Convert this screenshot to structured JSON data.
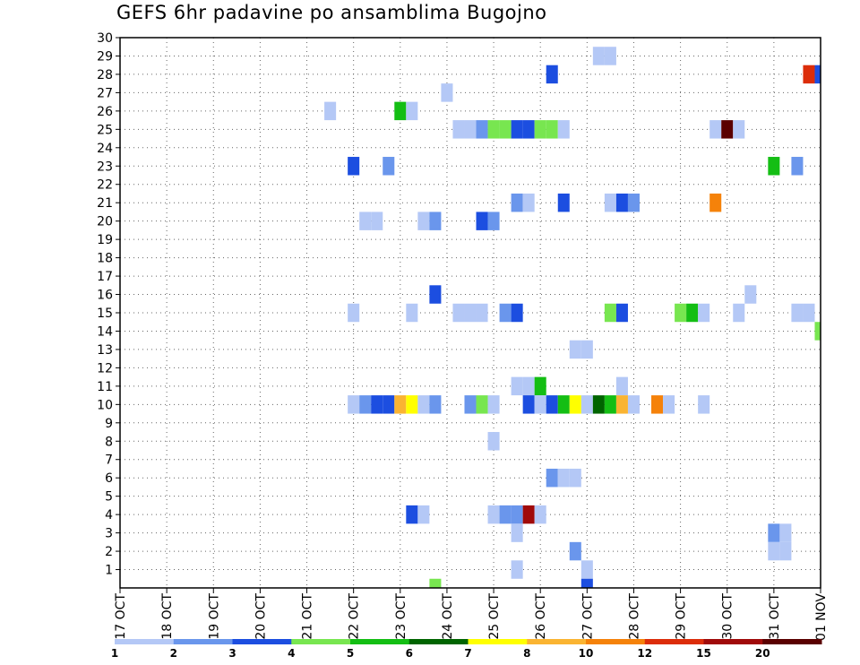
{
  "chart_data": {
    "type": "heatmap",
    "title": "GEFS 6hr padavine po ansamblima Bugojno",
    "xlabel": "",
    "ylabel": "",
    "x_tick_labels": [
      "17 OCT",
      "18 OCT",
      "19 OCT",
      "20 OCT",
      "21 OCT",
      "22 OCT",
      "23 OCT",
      "24 OCT",
      "25 OCT",
      "26 OCT",
      "27 OCT",
      "28 OCT",
      "29 OCT",
      "30 OCT",
      "31 OCT",
      "01 NOV"
    ],
    "y_tick_labels": [
      "1",
      "2",
      "3",
      "4",
      "5",
      "6",
      "7",
      "8",
      "9",
      "10",
      "11",
      "12",
      "13",
      "14",
      "15",
      "16",
      "17",
      "18",
      "19",
      "20",
      "21",
      "22",
      "23",
      "24",
      "25",
      "26",
      "27",
      "28",
      "29",
      "30"
    ],
    "xlim_days": [
      0,
      15
    ],
    "ylim": [
      0,
      30
    ],
    "grid": true,
    "time_step_hours": 6,
    "colorbar": {
      "boundaries": [
        "1",
        "2",
        "3",
        "4",
        "5",
        "6",
        "7",
        "8",
        "10",
        "12",
        "15",
        "20"
      ],
      "colors": [
        "#b4c8f6",
        "#6a96ec",
        "#1c4ee0",
        "#78e650",
        "#14be14",
        "#006400",
        "#ffff00",
        "#fab432",
        "#f5820a",
        "#dc2d0a",
        "#a00a0a",
        "#5a0000"
      ]
    },
    "cells": [
      {
        "day": 10.25,
        "member": 29,
        "cat": 0
      },
      {
        "day": 10.5,
        "member": 29,
        "cat": 0
      },
      {
        "day": 9.25,
        "member": 28,
        "cat": 2
      },
      {
        "day": 14.75,
        "member": 28,
        "cat": 9
      },
      {
        "day": 15.0,
        "member": 28,
        "cat": 2
      },
      {
        "day": 7.0,
        "member": 27,
        "cat": 0
      },
      {
        "day": 4.5,
        "member": 26,
        "cat": 0
      },
      {
        "day": 6.0,
        "member": 26,
        "cat": 4
      },
      {
        "day": 6.25,
        "member": 26,
        "cat": 0
      },
      {
        "day": 7.25,
        "member": 25,
        "cat": 0
      },
      {
        "day": 7.5,
        "member": 25,
        "cat": 0
      },
      {
        "day": 7.75,
        "member": 25,
        "cat": 1
      },
      {
        "day": 8.0,
        "member": 25,
        "cat": 3
      },
      {
        "day": 8.25,
        "member": 25,
        "cat": 3
      },
      {
        "day": 8.5,
        "member": 25,
        "cat": 2
      },
      {
        "day": 8.75,
        "member": 25,
        "cat": 2
      },
      {
        "day": 9.0,
        "member": 25,
        "cat": 3
      },
      {
        "day": 9.25,
        "member": 25,
        "cat": 3
      },
      {
        "day": 9.5,
        "member": 25,
        "cat": 0
      },
      {
        "day": 12.75,
        "member": 25,
        "cat": 0
      },
      {
        "day": 13.0,
        "member": 25,
        "cat": 11
      },
      {
        "day": 13.25,
        "member": 25,
        "cat": 0
      },
      {
        "day": 5.0,
        "member": 23,
        "cat": 2
      },
      {
        "day": 5.75,
        "member": 23,
        "cat": 1
      },
      {
        "day": 14.0,
        "member": 23,
        "cat": 4
      },
      {
        "day": 14.5,
        "member": 23,
        "cat": 1
      },
      {
        "day": 8.5,
        "member": 21,
        "cat": 1
      },
      {
        "day": 8.75,
        "member": 21,
        "cat": 0
      },
      {
        "day": 9.5,
        "member": 21,
        "cat": 2
      },
      {
        "day": 10.5,
        "member": 21,
        "cat": 0
      },
      {
        "day": 10.75,
        "member": 21,
        "cat": 2
      },
      {
        "day": 11.0,
        "member": 21,
        "cat": 1
      },
      {
        "day": 12.75,
        "member": 21,
        "cat": 8
      },
      {
        "day": 5.25,
        "member": 20,
        "cat": 0
      },
      {
        "day": 5.5,
        "member": 20,
        "cat": 0
      },
      {
        "day": 6.5,
        "member": 20,
        "cat": 0
      },
      {
        "day": 6.75,
        "member": 20,
        "cat": 1
      },
      {
        "day": 7.75,
        "member": 20,
        "cat": 2
      },
      {
        "day": 8.0,
        "member": 20,
        "cat": 1
      },
      {
        "day": 6.75,
        "member": 16,
        "cat": 2
      },
      {
        "day": 13.5,
        "member": 16,
        "cat": 0
      },
      {
        "day": 5.0,
        "member": 15,
        "cat": 0
      },
      {
        "day": 6.25,
        "member": 15,
        "cat": 0
      },
      {
        "day": 7.25,
        "member": 15,
        "cat": 0
      },
      {
        "day": 7.5,
        "member": 15,
        "cat": 0
      },
      {
        "day": 7.75,
        "member": 15,
        "cat": 0
      },
      {
        "day": 8.25,
        "member": 15,
        "cat": 1
      },
      {
        "day": 8.5,
        "member": 15,
        "cat": 2
      },
      {
        "day": 10.5,
        "member": 15,
        "cat": 3
      },
      {
        "day": 10.75,
        "member": 15,
        "cat": 2
      },
      {
        "day": 12.0,
        "member": 15,
        "cat": 3
      },
      {
        "day": 12.25,
        "member": 15,
        "cat": 4
      },
      {
        "day": 12.5,
        "member": 15,
        "cat": 0
      },
      {
        "day": 13.25,
        "member": 15,
        "cat": 0
      },
      {
        "day": 14.5,
        "member": 15,
        "cat": 0
      },
      {
        "day": 14.75,
        "member": 15,
        "cat": 0
      },
      {
        "day": 15.0,
        "member": 14,
        "cat": 3
      },
      {
        "day": 9.75,
        "member": 13,
        "cat": 0
      },
      {
        "day": 10.0,
        "member": 13,
        "cat": 0
      },
      {
        "day": 8.5,
        "member": 11,
        "cat": 0
      },
      {
        "day": 8.75,
        "member": 11,
        "cat": 0
      },
      {
        "day": 9.0,
        "member": 11,
        "cat": 4
      },
      {
        "day": 10.75,
        "member": 11,
        "cat": 0
      },
      {
        "day": 5.0,
        "member": 10,
        "cat": 0
      },
      {
        "day": 5.25,
        "member": 10,
        "cat": 1
      },
      {
        "day": 5.5,
        "member": 10,
        "cat": 2
      },
      {
        "day": 5.75,
        "member": 10,
        "cat": 2
      },
      {
        "day": 6.0,
        "member": 10,
        "cat": 7
      },
      {
        "day": 6.25,
        "member": 10,
        "cat": 6
      },
      {
        "day": 6.5,
        "member": 10,
        "cat": 0
      },
      {
        "day": 6.75,
        "member": 10,
        "cat": 1
      },
      {
        "day": 7.5,
        "member": 10,
        "cat": 1
      },
      {
        "day": 7.75,
        "member": 10,
        "cat": 3
      },
      {
        "day": 8.0,
        "member": 10,
        "cat": 0
      },
      {
        "day": 8.75,
        "member": 10,
        "cat": 2
      },
      {
        "day": 9.0,
        "member": 10,
        "cat": 0
      },
      {
        "day": 9.25,
        "member": 10,
        "cat": 2
      },
      {
        "day": 9.5,
        "member": 10,
        "cat": 4
      },
      {
        "day": 9.75,
        "member": 10,
        "cat": 6
      },
      {
        "day": 10.0,
        "member": 10,
        "cat": 0
      },
      {
        "day": 10.25,
        "member": 10,
        "cat": 5
      },
      {
        "day": 10.5,
        "member": 10,
        "cat": 4
      },
      {
        "day": 10.75,
        "member": 10,
        "cat": 7
      },
      {
        "day": 11.0,
        "member": 10,
        "cat": 0
      },
      {
        "day": 11.5,
        "member": 10,
        "cat": 8
      },
      {
        "day": 11.75,
        "member": 10,
        "cat": 0
      },
      {
        "day": 12.5,
        "member": 10,
        "cat": 0
      },
      {
        "day": 8.0,
        "member": 8,
        "cat": 0
      },
      {
        "day": 9.25,
        "member": 6,
        "cat": 1
      },
      {
        "day": 9.5,
        "member": 6,
        "cat": 0
      },
      {
        "day": 9.75,
        "member": 6,
        "cat": 0
      },
      {
        "day": 6.25,
        "member": 4,
        "cat": 2
      },
      {
        "day": 6.5,
        "member": 4,
        "cat": 0
      },
      {
        "day": 8.0,
        "member": 4,
        "cat": 0
      },
      {
        "day": 8.25,
        "member": 4,
        "cat": 1
      },
      {
        "day": 8.5,
        "member": 4,
        "cat": 1
      },
      {
        "day": 8.75,
        "member": 4,
        "cat": 10
      },
      {
        "day": 9.0,
        "member": 4,
        "cat": 0
      },
      {
        "day": 8.5,
        "member": 3,
        "cat": 0
      },
      {
        "day": 14.0,
        "member": 3,
        "cat": 1
      },
      {
        "day": 14.25,
        "member": 3,
        "cat": 0
      },
      {
        "day": 9.75,
        "member": 2,
        "cat": 1
      },
      {
        "day": 14.0,
        "member": 2,
        "cat": 0
      },
      {
        "day": 14.25,
        "member": 2,
        "cat": 0
      },
      {
        "day": 8.5,
        "member": 1,
        "cat": 0
      },
      {
        "day": 10.0,
        "member": 1,
        "cat": 0
      },
      {
        "day": 6.75,
        "member": 0,
        "cat": 3
      },
      {
        "day": 10.0,
        "member": 0,
        "cat": 2
      }
    ]
  }
}
